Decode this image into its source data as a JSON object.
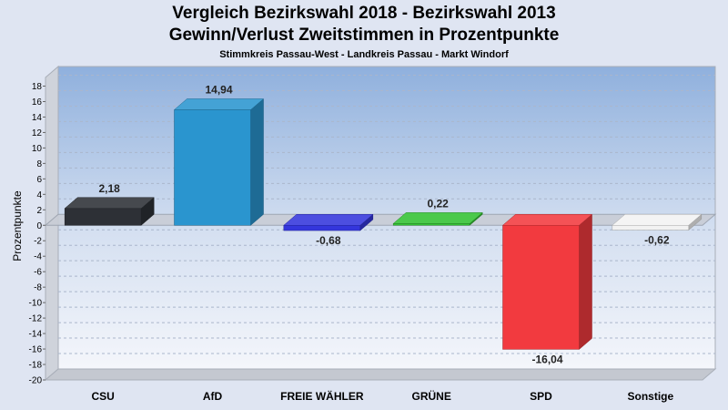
{
  "chart_data": {
    "type": "bar",
    "title": "Vergleich Bezirkswahl 2018 - Bezirkswahl 2013",
    "subtitle": "Gewinn/Verlust Zweitstimmen in Prozentpunkte",
    "caption": "Stimmkreis Passau-West - Landkreis Passau - Markt Windorf",
    "xlabel": "",
    "ylabel": "Prozentpunkte",
    "ylim": [
      -20,
      18
    ],
    "yticks": [
      18,
      16,
      14,
      12,
      10,
      8,
      6,
      4,
      2,
      0,
      -2,
      -4,
      -6,
      -8,
      -10,
      -12,
      -14,
      -16,
      -18,
      -20
    ],
    "grid": true,
    "categories": [
      "CSU",
      "AfD",
      "FREIE WÄHLER",
      "GRÜNE",
      "SPD",
      "Sonstige"
    ],
    "values": [
      2.18,
      14.94,
      -0.68,
      0.22,
      -16.04,
      -0.62
    ],
    "value_labels": [
      "2,18",
      "14,94",
      "-0,68",
      "0,22",
      "-16,04",
      "-0,62"
    ],
    "colors": [
      "#2d3036",
      "#2a95cf",
      "#3436dc",
      "#33c233",
      "#f23a3f",
      "#f2f2f2"
    ]
  }
}
